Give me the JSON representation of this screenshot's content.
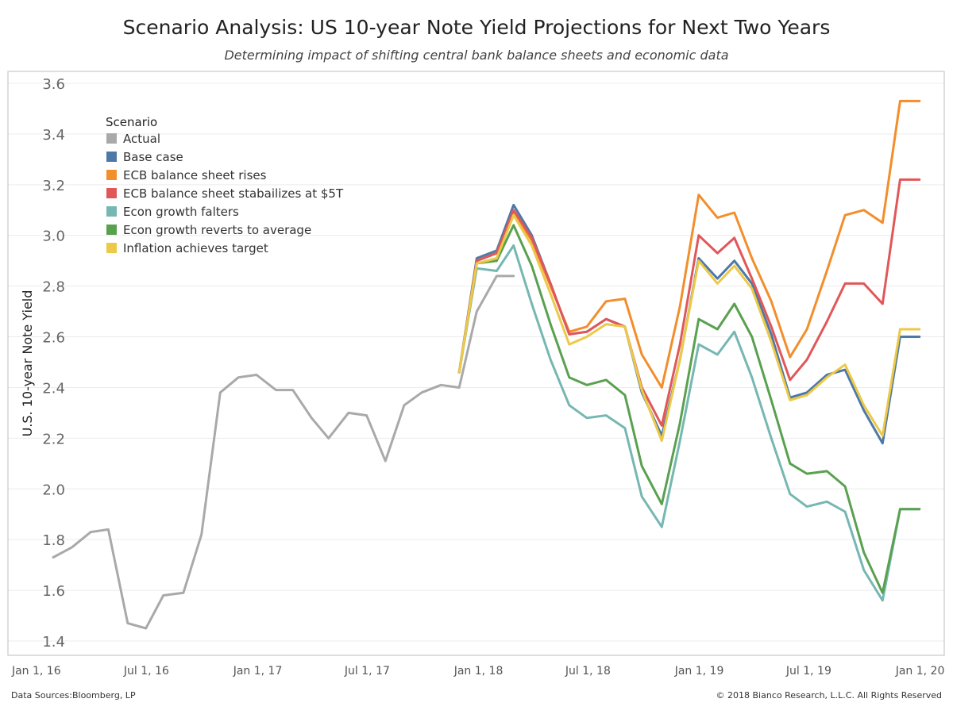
{
  "title": "Scenario Analysis: US 10-year Note Yield Projections for Next Two Years",
  "subtitle": "Determining impact of shifting central bank balance sheets and economic data",
  "footer": {
    "source": "Data Sources:Bloomberg, LP",
    "copyright": "© 2018 Bianco Research, L.L.C. All Rights Reserved"
  },
  "chart_data": {
    "type": "line",
    "ylabel": "U.S. 10-year Note Yield",
    "ylim": [
      1.4,
      3.6
    ],
    "y_ticks": [
      1.4,
      1.6,
      1.8,
      2.0,
      2.2,
      2.4,
      2.6,
      2.8,
      3.0,
      3.2,
      3.4,
      3.6
    ],
    "y_tick_labels": [
      "1.4",
      "1.6",
      "1.8",
      "2.0",
      "2.2",
      "2.4",
      "2.6",
      "2.8",
      "3.0",
      "3.2",
      "3.4",
      "3.6"
    ],
    "xlim": [
      "2015-11-15",
      "2020-02-10"
    ],
    "x_ticks": [
      "2016-01-01",
      "2016-07-01",
      "2017-01-01",
      "2017-07-01",
      "2018-01-01",
      "2018-07-01",
      "2019-01-01",
      "2019-07-01",
      "2020-01-01"
    ],
    "x_tick_labels": [
      "Jan 1, 16",
      "Jul 1, 16",
      "Jan 1, 17",
      "Jul 1, 17",
      "Jan 1, 18",
      "Jul 1, 18",
      "Jan 1, 19",
      "Jul 1, 19",
      "Jan 1, 20"
    ],
    "grid": "horizontal",
    "legend": {
      "title": "Scenario",
      "position": "top-left"
    },
    "series": [
      {
        "name": "Actual",
        "color": "#a9a9a9",
        "x": [
          "2016-01-29",
          "2016-02-29",
          "2016-03-31",
          "2016-04-29",
          "2016-05-31",
          "2016-06-30",
          "2016-07-29",
          "2016-08-31",
          "2016-09-30",
          "2016-10-31",
          "2016-11-30",
          "2016-12-30",
          "2017-01-31",
          "2017-02-28",
          "2017-03-31",
          "2017-04-28",
          "2017-05-31",
          "2017-06-30",
          "2017-07-31",
          "2017-08-31",
          "2017-09-29",
          "2017-10-31",
          "2017-11-30",
          "2017-12-29",
          "2018-01-31",
          "2018-02-28"
        ],
        "y": [
          1.73,
          1.77,
          1.83,
          1.84,
          1.47,
          1.45,
          1.58,
          1.59,
          1.82,
          2.38,
          2.44,
          2.45,
          2.39,
          2.39,
          2.28,
          2.2,
          2.3,
          2.29,
          2.11,
          2.33,
          2.38,
          2.41,
          2.4,
          2.7,
          2.84,
          2.84
        ]
      },
      {
        "name": "Base case",
        "color": "#4e79a7",
        "x": [
          "2017-11-30",
          "2017-12-29",
          "2018-01-31",
          "2018-02-28",
          "2018-03-30",
          "2018-04-30",
          "2018-05-31",
          "2018-06-29",
          "2018-07-31",
          "2018-08-31",
          "2018-09-28",
          "2018-10-31",
          "2018-11-30",
          "2018-12-31",
          "2019-01-31",
          "2019-02-28",
          "2019-03-29",
          "2019-04-30",
          "2019-05-31",
          "2019-06-28",
          "2019-07-31",
          "2019-08-30",
          "2019-09-30",
          "2019-10-31",
          "2019-11-29",
          "2019-12-31"
        ],
        "y": [
          2.46,
          2.91,
          2.94,
          3.12,
          3.0,
          2.81,
          2.61,
          2.62,
          2.67,
          2.64,
          2.38,
          2.21,
          2.51,
          2.91,
          2.83,
          2.9,
          2.81,
          2.61,
          2.36,
          2.38,
          2.45,
          2.47,
          2.31,
          2.18,
          2.6,
          2.6
        ]
      },
      {
        "name": "ECB balance sheet rises",
        "color": "#f28e2b",
        "x": [
          "2017-11-30",
          "2017-12-29",
          "2018-01-31",
          "2018-02-28",
          "2018-03-30",
          "2018-04-30",
          "2018-05-31",
          "2018-06-29",
          "2018-07-31",
          "2018-08-31",
          "2018-09-28",
          "2018-10-31",
          "2018-11-30",
          "2018-12-31",
          "2019-01-31",
          "2019-02-28",
          "2019-03-29",
          "2019-04-30",
          "2019-05-31",
          "2019-06-28",
          "2019-07-31",
          "2019-08-30",
          "2019-09-30",
          "2019-10-31",
          "2019-11-29",
          "2019-12-31"
        ],
        "y": [
          2.46,
          2.9,
          2.93,
          3.09,
          2.98,
          2.8,
          2.62,
          2.64,
          2.74,
          2.75,
          2.53,
          2.4,
          2.72,
          3.16,
          3.07,
          3.09,
          2.91,
          2.74,
          2.52,
          2.63,
          2.86,
          3.08,
          3.1,
          3.05,
          3.53,
          3.53
        ]
      },
      {
        "name": "ECB balance sheet stabailizes at $5T",
        "color": "#e15759",
        "x": [
          "2017-11-30",
          "2017-12-29",
          "2018-01-31",
          "2018-02-28",
          "2018-03-30",
          "2018-04-30",
          "2018-05-31",
          "2018-06-29",
          "2018-07-31",
          "2018-08-31",
          "2018-09-28",
          "2018-10-31",
          "2018-11-30",
          "2018-12-31",
          "2019-01-31",
          "2019-02-28",
          "2019-03-29",
          "2019-04-30",
          "2019-05-31",
          "2019-06-28",
          "2019-07-31",
          "2019-08-30",
          "2019-09-30",
          "2019-10-31",
          "2019-11-29",
          "2019-12-31"
        ],
        "y": [
          2.46,
          2.9,
          2.93,
          3.1,
          2.99,
          2.81,
          2.61,
          2.62,
          2.67,
          2.64,
          2.4,
          2.25,
          2.57,
          3.0,
          2.93,
          2.99,
          2.83,
          2.64,
          2.43,
          2.51,
          2.66,
          2.81,
          2.81,
          2.73,
          3.22,
          3.22
        ]
      },
      {
        "name": "Econ growth falters",
        "color": "#76b7b2",
        "x": [
          "2017-11-30",
          "2017-12-29",
          "2018-01-31",
          "2018-02-28",
          "2018-03-30",
          "2018-04-30",
          "2018-05-31",
          "2018-06-29",
          "2018-07-31",
          "2018-08-31",
          "2018-09-28",
          "2018-10-31",
          "2018-11-30",
          "2018-12-31",
          "2019-01-31",
          "2019-02-28",
          "2019-03-29",
          "2019-04-30",
          "2019-05-31",
          "2019-06-28",
          "2019-07-31",
          "2019-08-30",
          "2019-09-30",
          "2019-10-31",
          "2019-11-29",
          "2019-12-31"
        ],
        "y": [
          2.46,
          2.87,
          2.86,
          2.96,
          2.73,
          2.51,
          2.33,
          2.28,
          2.29,
          2.24,
          1.97,
          1.85,
          2.19,
          2.57,
          2.53,
          2.62,
          2.44,
          2.2,
          1.98,
          1.93,
          1.95,
          1.91,
          1.68,
          1.56,
          1.92,
          1.92
        ]
      },
      {
        "name": "Econ growth reverts to average",
        "color": "#59a14f",
        "x": [
          "2017-11-30",
          "2017-12-29",
          "2018-01-31",
          "2018-02-28",
          "2018-03-30",
          "2018-04-30",
          "2018-05-31",
          "2018-06-29",
          "2018-07-31",
          "2018-08-31",
          "2018-09-28",
          "2018-10-31",
          "2018-11-30",
          "2018-12-31",
          "2019-01-31",
          "2019-02-28",
          "2019-03-29",
          "2019-04-30",
          "2019-05-31",
          "2019-06-28",
          "2019-07-31",
          "2019-08-30",
          "2019-09-30",
          "2019-10-31",
          "2019-11-29",
          "2019-12-31"
        ],
        "y": [
          2.46,
          2.89,
          2.9,
          3.04,
          2.88,
          2.65,
          2.44,
          2.41,
          2.43,
          2.37,
          2.09,
          1.94,
          2.26,
          2.67,
          2.63,
          2.73,
          2.6,
          2.35,
          2.1,
          2.06,
          2.07,
          2.01,
          1.75,
          1.59,
          1.92,
          1.92
        ]
      },
      {
        "name": "Inflation achieves target",
        "color": "#edc948",
        "x": [
          "2017-11-30",
          "2017-12-29",
          "2018-01-31",
          "2018-02-28",
          "2018-03-30",
          "2018-04-30",
          "2018-05-31",
          "2018-06-29",
          "2018-07-31",
          "2018-08-31",
          "2018-09-28",
          "2018-10-31",
          "2018-11-30",
          "2018-12-31",
          "2019-01-31",
          "2019-02-28",
          "2019-03-29",
          "2019-04-30",
          "2019-05-31",
          "2019-06-28",
          "2019-07-31",
          "2019-08-30",
          "2019-09-30",
          "2019-10-31",
          "2019-11-29",
          "2019-12-31"
        ],
        "y": [
          2.46,
          2.89,
          2.91,
          3.08,
          2.96,
          2.77,
          2.57,
          2.6,
          2.65,
          2.64,
          2.39,
          2.19,
          2.51,
          2.9,
          2.81,
          2.88,
          2.79,
          2.58,
          2.35,
          2.37,
          2.44,
          2.49,
          2.33,
          2.21,
          2.63,
          2.63
        ]
      }
    ]
  }
}
